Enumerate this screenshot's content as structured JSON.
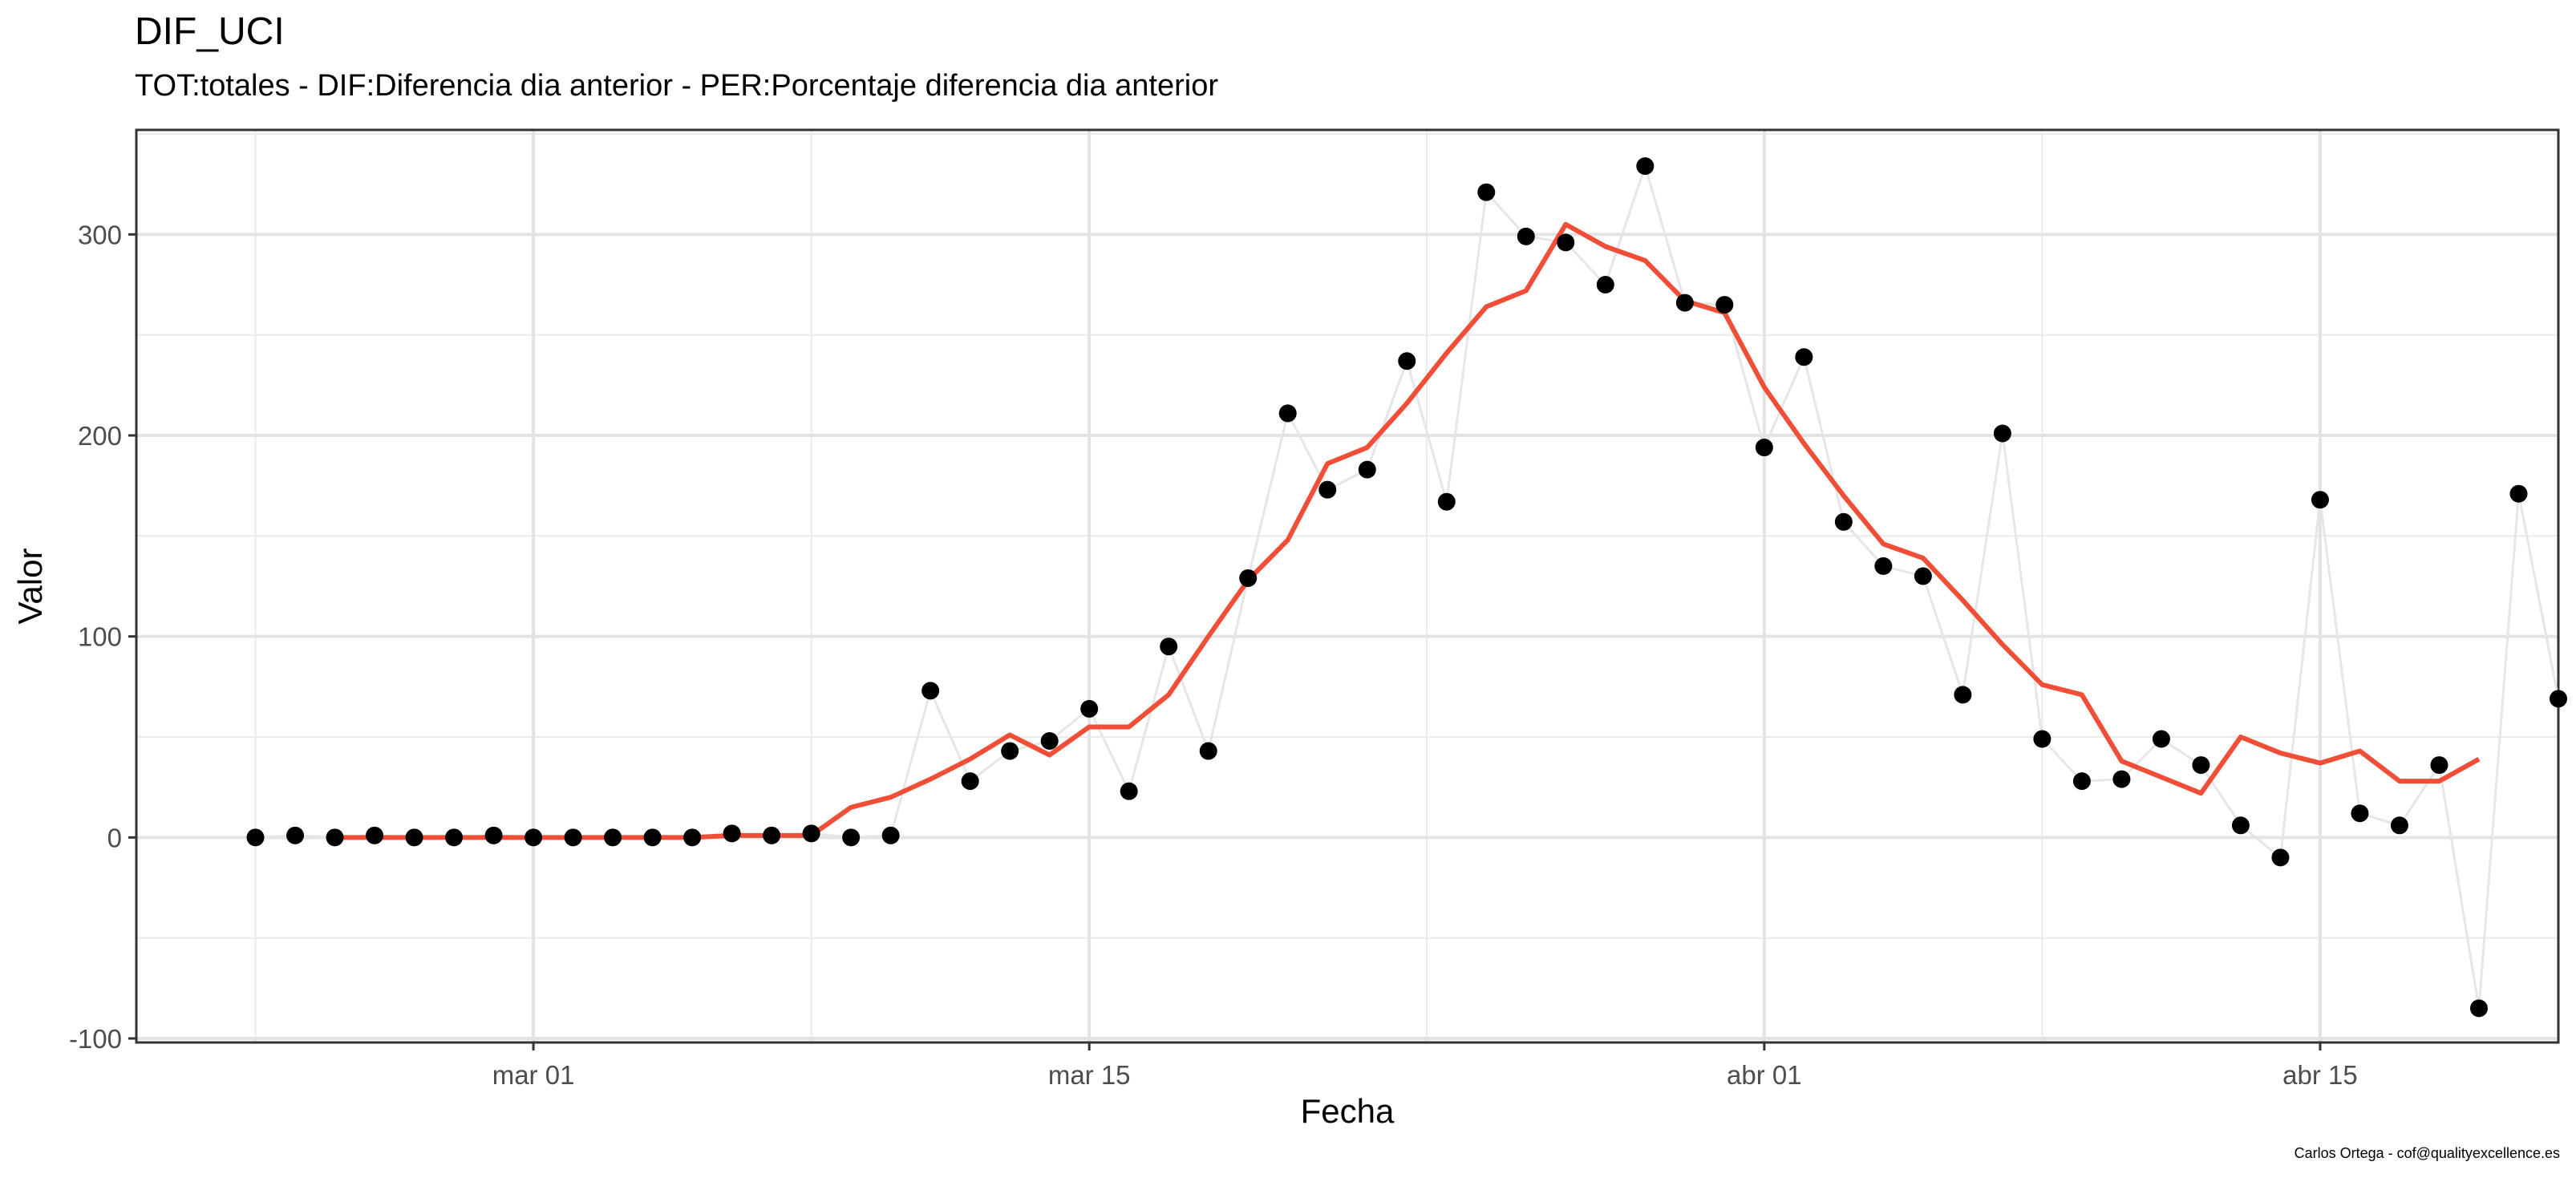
{
  "chart_data": {
    "type": "line",
    "title": "DIF_UCI",
    "subtitle": "TOT:totales - DIF:Diferencia dia anterior - PER:Porcentaje diferencia dia anterior",
    "xlabel": "Fecha",
    "ylabel": "Valor",
    "caption": "Carlos Ortega - cof@qualityexcellence.es",
    "x_tick_labels": [
      "mar 01",
      "mar 15",
      "abr 01",
      "abr 15"
    ],
    "y_tick_labels": [
      "-100",
      "0",
      "100",
      "200",
      "300"
    ],
    "y_ticks": [
      -100,
      0,
      100,
      200,
      300
    ],
    "ylim": [
      -102,
      352
    ],
    "xlim": [
      "2020-02-20",
      "2020-04-21"
    ],
    "grid": true,
    "series": [
      {
        "kind": "points-with-line",
        "color": "#000000",
        "line_color": "#e6e6e6",
        "points": [
          [
            "2020-02-23",
            0
          ],
          [
            "2020-02-24",
            1
          ],
          [
            "2020-02-25",
            0
          ],
          [
            "2020-02-26",
            1
          ],
          [
            "2020-02-27",
            0
          ],
          [
            "2020-02-28",
            0
          ],
          [
            "2020-02-29",
            1
          ],
          [
            "2020-03-01",
            0
          ],
          [
            "2020-03-02",
            0
          ],
          [
            "2020-03-03",
            0
          ],
          [
            "2020-03-04",
            0
          ],
          [
            "2020-03-05",
            0
          ],
          [
            "2020-03-06",
            2
          ],
          [
            "2020-03-07",
            1
          ],
          [
            "2020-03-08",
            2
          ],
          [
            "2020-03-09",
            0
          ],
          [
            "2020-03-10",
            1
          ],
          [
            "2020-03-11",
            73
          ],
          [
            "2020-03-12",
            28
          ],
          [
            "2020-03-13",
            43
          ],
          [
            "2020-03-14",
            48
          ],
          [
            "2020-03-15",
            64
          ],
          [
            "2020-03-16",
            23
          ],
          [
            "2020-03-17",
            95
          ],
          [
            "2020-03-18",
            43
          ],
          [
            "2020-03-19",
            129
          ],
          [
            "2020-03-20",
            211
          ],
          [
            "2020-03-21",
            173
          ],
          [
            "2020-03-22",
            183
          ],
          [
            "2020-03-23",
            237
          ],
          [
            "2020-03-24",
            167
          ],
          [
            "2020-03-25",
            321
          ],
          [
            "2020-03-26",
            299
          ],
          [
            "2020-03-27",
            296
          ],
          [
            "2020-03-28",
            275
          ],
          [
            "2020-03-29",
            334
          ],
          [
            "2020-03-30",
            266
          ],
          [
            "2020-03-31",
            265
          ],
          [
            "2020-04-01",
            194
          ],
          [
            "2020-04-02",
            239
          ],
          [
            "2020-04-03",
            157
          ],
          [
            "2020-04-04",
            135
          ],
          [
            "2020-04-05",
            130
          ],
          [
            "2020-04-06",
            71
          ],
          [
            "2020-04-07",
            201
          ],
          [
            "2020-04-08",
            49
          ],
          [
            "2020-04-09",
            28
          ],
          [
            "2020-04-10",
            29
          ],
          [
            "2020-04-11",
            49
          ],
          [
            "2020-04-12",
            36
          ],
          [
            "2020-04-13",
            6
          ],
          [
            "2020-04-14",
            -10
          ],
          [
            "2020-04-15",
            168
          ],
          [
            "2020-04-16",
            12
          ],
          [
            "2020-04-17",
            6
          ],
          [
            "2020-04-18",
            36
          ],
          [
            "2020-04-19",
            -85
          ],
          [
            "2020-04-20",
            171
          ],
          [
            "2020-04-21",
            69
          ]
        ]
      },
      {
        "kind": "line",
        "color": "#f04e37",
        "points": [
          [
            "2020-02-25",
            0
          ],
          [
            "2020-02-26",
            0
          ],
          [
            "2020-02-27",
            0
          ],
          [
            "2020-02-28",
            0
          ],
          [
            "2020-02-29",
            0
          ],
          [
            "2020-03-01",
            0
          ],
          [
            "2020-03-02",
            0
          ],
          [
            "2020-03-03",
            0
          ],
          [
            "2020-03-04",
            0
          ],
          [
            "2020-03-05",
            0
          ],
          [
            "2020-03-06",
            1
          ],
          [
            "2020-03-07",
            1
          ],
          [
            "2020-03-08",
            1
          ],
          [
            "2020-03-09",
            15
          ],
          [
            "2020-03-10",
            20
          ],
          [
            "2020-03-11",
            29
          ],
          [
            "2020-03-12",
            39
          ],
          [
            "2020-03-13",
            51
          ],
          [
            "2020-03-14",
            41
          ],
          [
            "2020-03-15",
            55
          ],
          [
            "2020-03-16",
            55
          ],
          [
            "2020-03-17",
            71
          ],
          [
            "2020-03-18",
            100
          ],
          [
            "2020-03-19",
            128
          ],
          [
            "2020-03-20",
            148
          ],
          [
            "2020-03-21",
            186
          ],
          [
            "2020-03-22",
            194
          ],
          [
            "2020-03-23",
            216
          ],
          [
            "2020-03-24",
            241
          ],
          [
            "2020-03-25",
            264
          ],
          [
            "2020-03-26",
            272
          ],
          [
            "2020-03-27",
            305
          ],
          [
            "2020-03-28",
            294
          ],
          [
            "2020-03-29",
            287
          ],
          [
            "2020-03-30",
            267
          ],
          [
            "2020-03-31",
            261
          ],
          [
            "2020-04-01",
            224
          ],
          [
            "2020-04-02",
            196
          ],
          [
            "2020-04-03",
            170
          ],
          [
            "2020-04-04",
            146
          ],
          [
            "2020-04-05",
            139
          ],
          [
            "2020-04-06",
            118
          ],
          [
            "2020-04-07",
            96
          ],
          [
            "2020-04-08",
            76
          ],
          [
            "2020-04-09",
            71
          ],
          [
            "2020-04-10",
            38
          ],
          [
            "2020-04-11",
            30
          ],
          [
            "2020-04-12",
            22
          ],
          [
            "2020-04-13",
            50
          ],
          [
            "2020-04-14",
            42
          ],
          [
            "2020-04-15",
            37
          ],
          [
            "2020-04-16",
            43
          ],
          [
            "2020-04-17",
            28
          ],
          [
            "2020-04-18",
            28
          ],
          [
            "2020-04-19",
            39
          ]
        ]
      }
    ]
  }
}
